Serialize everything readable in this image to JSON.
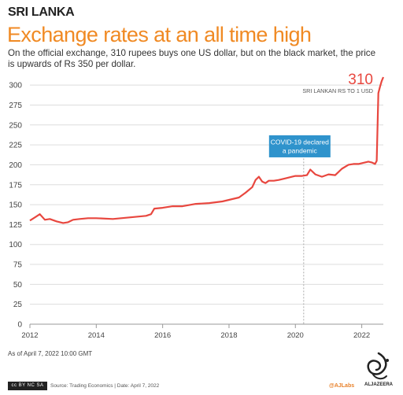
{
  "header": {
    "kicker": "SRI LANKA",
    "title": "Exchange rates at an all time high",
    "subtitle": "On the official exchange, 310 rupees buys one US dollar, but on the black market, the price is upwards of Rs 350 per dollar."
  },
  "chart_data": {
    "type": "line",
    "title": "",
    "xlabel": "",
    "ylabel": "",
    "x_ticks": [
      "2012",
      "2014",
      "2016",
      "2018",
      "2020",
      "2022"
    ],
    "y_ticks": [
      0,
      25,
      50,
      75,
      100,
      125,
      150,
      175,
      200,
      225,
      250,
      275,
      300
    ],
    "xlim": [
      2012.0,
      2022.65
    ],
    "ylim": [
      0,
      312
    ],
    "grid": "horizontal",
    "series": [
      {
        "name": "SRI LANKAN RS TO 1 USD",
        "color": "#e8473f",
        "x": [
          2012.0,
          2012.15,
          2012.3,
          2012.45,
          2012.6,
          2012.8,
          2013.0,
          2013.15,
          2013.3,
          2013.5,
          2013.75,
          2014.0,
          2014.5,
          2015.0,
          2015.5,
          2015.65,
          2015.75,
          2016.0,
          2016.3,
          2016.6,
          2017.0,
          2017.4,
          2017.8,
          2018.0,
          2018.3,
          2018.5,
          2018.7,
          2018.8,
          2018.9,
          2019.0,
          2019.1,
          2019.2,
          2019.35,
          2019.5,
          2019.7,
          2019.9,
          2020.0,
          2020.2,
          2020.35,
          2020.45,
          2020.6,
          2020.8,
          2021.0,
          2021.2,
          2021.4,
          2021.6,
          2021.75,
          2021.9,
          2022.0,
          2022.1,
          2022.2,
          2022.3,
          2022.4,
          2022.45,
          2022.5,
          2022.55,
          2022.6,
          2022.65
        ],
        "values": [
          130,
          134,
          138,
          131,
          132,
          129,
          127,
          128,
          131,
          132,
          133,
          133,
          132,
          134,
          136,
          138,
          145,
          146,
          148,
          148,
          151,
          152,
          154,
          156,
          159,
          165,
          172,
          181,
          185,
          179,
          177,
          180,
          180,
          181,
          183,
          185,
          186,
          186,
          187,
          194,
          188,
          185,
          188,
          187,
          195,
          200,
          201,
          201,
          202,
          203,
          204,
          203,
          201,
          205,
          290,
          298,
          305,
          310
        ]
      }
    ],
    "end_label": "310",
    "series_label": "SRI LANKAN RS TO 1 USD",
    "annotation": {
      "text_line1": "COVID-19 declared",
      "text_line2": "a pandemic",
      "x": 2020.25,
      "color": "#2f93cc"
    }
  },
  "footer": {
    "as_of": "As of April 7, 2022 10:00 GMT",
    "license": "cc BY NC SA",
    "source": "Source: Trading Economics  |  Date: April 7, 2022",
    "handle": "@AJLabs",
    "logo_name": "ALJAZEERA"
  },
  "colors": {
    "title": "#f08a24",
    "line": "#e8473f",
    "annotation": "#2f93cc",
    "grid": "#dddddd"
  }
}
